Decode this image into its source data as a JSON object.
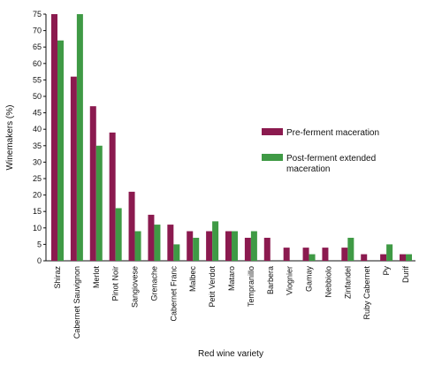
{
  "chart_data": {
    "type": "bar",
    "xlabel": "Red wine variety",
    "ylabel": "Winemakers (%)",
    "ylim": [
      0,
      75
    ],
    "yticks": [
      0,
      5,
      10,
      15,
      20,
      25,
      30,
      35,
      40,
      45,
      50,
      55,
      60,
      65,
      70,
      75
    ],
    "grid": false,
    "legend_position": "right",
    "categories": [
      "Shiraz",
      "Cabernet Sauvignon",
      "Merlot",
      "Pinot Noir",
      "Sangiovese",
      "Grenache",
      "Cabernet Franc",
      "Malbec",
      "Petit Verdot",
      "Mataro",
      "Tempranillo",
      "Barbera",
      "Viognier",
      "Gamay",
      "Nebbiolo",
      "Zinfandel",
      "Ruby Cabernet",
      "Py",
      "Durif"
    ],
    "series": [
      {
        "name": "Pre-ferment maceration",
        "color": "#8b1a4f",
        "values": [
          75,
          56,
          47,
          39,
          21,
          14,
          11,
          9,
          9,
          9,
          7,
          7,
          4,
          4,
          4,
          4,
          2,
          2,
          2
        ]
      },
      {
        "name": "Post-ferment extended maceration",
        "color": "#3f9a45",
        "values": [
          67,
          75,
          35,
          16,
          9,
          11,
          5,
          7,
          12,
          9,
          9,
          0,
          0,
          2,
          0,
          7,
          0,
          5,
          2
        ]
      }
    ]
  }
}
